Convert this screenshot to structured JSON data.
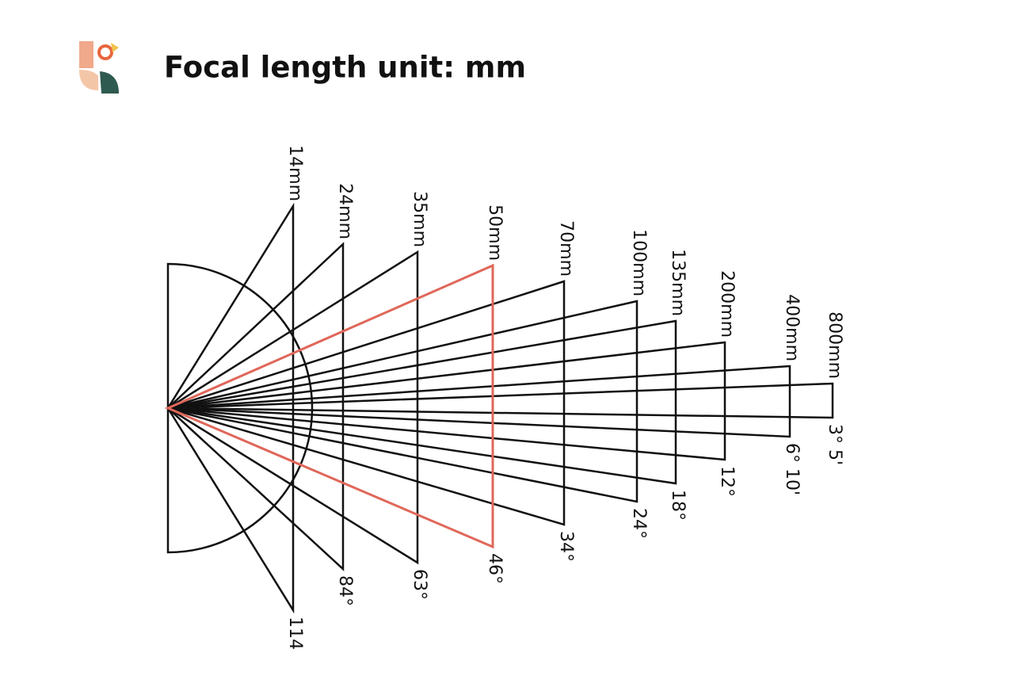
{
  "header": {
    "title": "Focal length unit: mm"
  },
  "lenses": [
    {
      "focal": "14mm",
      "angle": "114"
    },
    {
      "focal": "24mm",
      "angle": "84°"
    },
    {
      "focal": "35mm",
      "angle": "63°"
    },
    {
      "focal": "50mm",
      "angle": "46°"
    },
    {
      "focal": "70mm",
      "angle": "34°"
    },
    {
      "focal": "100mm",
      "angle": "24°"
    },
    {
      "focal": "135mm",
      "angle": "18°"
    },
    {
      "focal": "200mm",
      "angle": "12°"
    },
    {
      "focal": "400mm",
      "angle": "6° 10'"
    },
    {
      "focal": "800mm",
      "angle": "3° 5'"
    }
  ],
  "highlight": 3
}
